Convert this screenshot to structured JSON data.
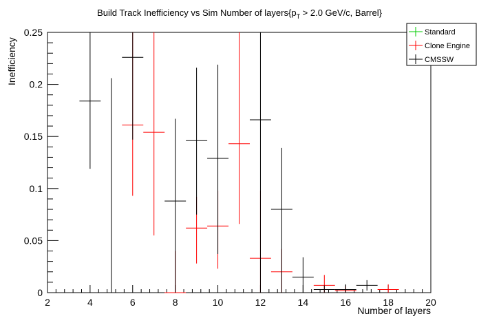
{
  "chart_data": {
    "type": "scatter",
    "title_parts": {
      "pre": "Build Track Inefficiency vs Sim Number of layers{p",
      "sub": "T",
      "post": " > 2.0 GeV/c, Barrel}"
    },
    "xlabel": "Number of layers",
    "ylabel": "Inefficiency",
    "xlim": [
      2,
      20
    ],
    "ylim": [
      0,
      0.25
    ],
    "xticks": [
      2,
      4,
      6,
      8,
      10,
      12,
      14,
      16,
      18,
      20
    ],
    "xtick_labels": [
      "2",
      "4",
      "6",
      "8",
      "10",
      "12",
      "14",
      "16",
      "18",
      "20"
    ],
    "yticks": [
      0,
      0.05,
      0.1,
      0.15,
      0.2,
      0.25
    ],
    "ytick_labels": [
      "0",
      "0.05",
      "0.1",
      "0.15",
      "0.2",
      "0.25"
    ],
    "grid": false,
    "legend_position": "top-right",
    "series": [
      {
        "name": "Standard",
        "color": "#00cc00",
        "points": []
      },
      {
        "name": "Clone Engine",
        "color": "#ff0000",
        "points": [
          {
            "x": 6,
            "y": 0.161,
            "ylo": 0.093,
            "yhi": 0.25
          },
          {
            "x": 7,
            "y": 0.154,
            "ylo": 0.055,
            "yhi": 0.25
          },
          {
            "x": 8,
            "y": 0.0,
            "ylo": 0.0,
            "yhi": 0.04
          },
          {
            "x": 9,
            "y": 0.062,
            "ylo": 0.028,
            "yhi": 0.092
          },
          {
            "x": 10,
            "y": 0.064,
            "ylo": 0.023,
            "yhi": 0.098
          },
          {
            "x": 11,
            "y": 0.143,
            "ylo": 0.066,
            "yhi": 0.25
          },
          {
            "x": 12,
            "y": 0.033,
            "ylo": 0.0,
            "yhi": 0.098
          },
          {
            "x": 13,
            "y": 0.02,
            "ylo": 0.0,
            "yhi": 0.042
          },
          {
            "x": 15,
            "y": 0.007,
            "ylo": 0.0,
            "yhi": 0.017
          },
          {
            "x": 16,
            "y": 0.002,
            "ylo": 0.0,
            "yhi": 0.006
          },
          {
            "x": 18,
            "y": 0.003,
            "ylo": 0.0,
            "yhi": 0.008
          }
        ]
      },
      {
        "name": "CMSSW",
        "color": "#000000",
        "points": [
          {
            "x": 4,
            "y": 0.184,
            "ylo": 0.119,
            "yhi": 0.25
          },
          {
            "x": 5,
            "y": 0.0,
            "ylo": 0.0,
            "yhi": 0.206
          },
          {
            "x": 6,
            "y": 0.226,
            "ylo": 0.147,
            "yhi": 0.25
          },
          {
            "x": 8,
            "y": 0.088,
            "ylo": 0.0,
            "yhi": 0.167
          },
          {
            "x": 9,
            "y": 0.146,
            "ylo": 0.075,
            "yhi": 0.216
          },
          {
            "x": 10,
            "y": 0.129,
            "ylo": 0.037,
            "yhi": 0.219
          },
          {
            "x": 12,
            "y": 0.166,
            "ylo": 0.0,
            "yhi": 0.25
          },
          {
            "x": 13,
            "y": 0.08,
            "ylo": 0.0,
            "yhi": 0.139
          },
          {
            "x": 14,
            "y": 0.015,
            "ylo": 0.0,
            "yhi": 0.034
          },
          {
            "x": 15,
            "y": 0.003,
            "ylo": 0.0,
            "yhi": 0.007
          },
          {
            "x": 16,
            "y": 0.003,
            "ylo": 0.0,
            "yhi": 0.008
          },
          {
            "x": 17,
            "y": 0.007,
            "ylo": 0.002,
            "yhi": 0.012
          }
        ]
      }
    ]
  }
}
